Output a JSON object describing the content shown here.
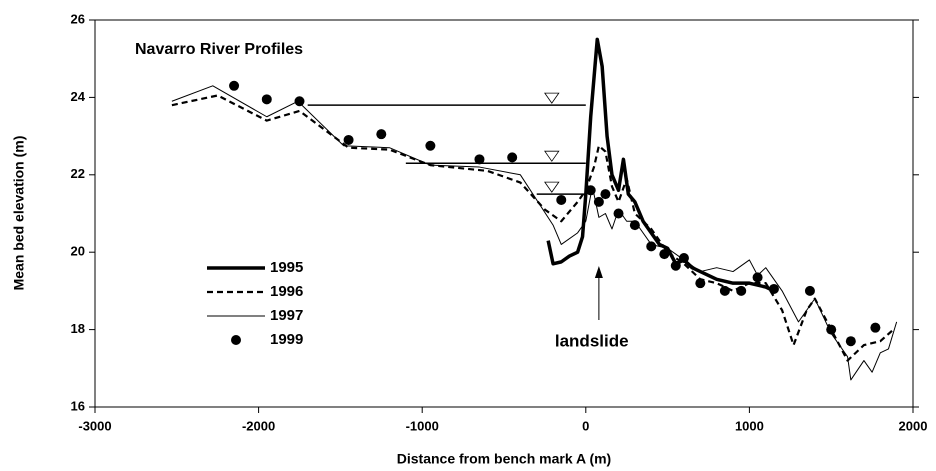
{
  "chart_data": {
    "type": "line",
    "title": "Navarro River Profiles",
    "x_label": "Distance from bench mark A (m)",
    "y_label": "Mean bed elevation (m)",
    "annotation": "landslide",
    "annotation_x": 80,
    "xlim": [
      -3000,
      2000
    ],
    "xticks": [
      -3000,
      -2000,
      -1000,
      0,
      1000,
      2000
    ],
    "ylim": [
      16,
      26
    ],
    "yticks": [
      16,
      18,
      20,
      22,
      24,
      26
    ],
    "grid": false,
    "legend": "lower left",
    "water_levels": [
      {
        "x": [
          -1700,
          0
        ],
        "y": 23.8
      },
      {
        "x": [
          -1100,
          0
        ],
        "y": 22.3
      },
      {
        "x": [
          -300,
          0
        ],
        "y": 21.5
      }
    ],
    "series": [
      {
        "name": "1995",
        "color": "#000",
        "style": "thick",
        "x": [
          -230,
          -200,
          -150,
          -100,
          -50,
          -20,
          0,
          30,
          70,
          100,
          130,
          160,
          200,
          230,
          260,
          300,
          350,
          400,
          450,
          500,
          550,
          600,
          650,
          700,
          800,
          900,
          1000,
          1100,
          1150
        ],
        "values": [
          20.3,
          19.7,
          19.75,
          19.9,
          20.0,
          20.4,
          21.5,
          23.5,
          25.5,
          24.8,
          23.0,
          22.0,
          21.6,
          22.4,
          21.5,
          21.3,
          20.8,
          20.5,
          20.2,
          20.1,
          19.7,
          19.8,
          19.6,
          19.5,
          19.3,
          19.2,
          19.2,
          19.1,
          19.0
        ]
      },
      {
        "name": "1996",
        "color": "#000",
        "style": "dashed",
        "x": [
          -2530,
          -2250,
          -1950,
          -1750,
          -1450,
          -1200,
          -950,
          -600,
          -400,
          -250,
          -150,
          -50,
          0,
          50,
          80,
          120,
          160,
          200,
          250,
          300,
          400,
          500,
          600,
          700,
          800,
          900,
          1000,
          1100,
          1200,
          1270,
          1350,
          1400,
          1500,
          1600,
          1700,
          1800,
          1880
        ],
        "values": [
          23.8,
          24.05,
          23.4,
          23.65,
          22.7,
          22.65,
          22.25,
          22.1,
          21.8,
          21.1,
          20.8,
          21.3,
          21.6,
          22.2,
          22.75,
          22.6,
          21.7,
          21.3,
          21.9,
          21.0,
          20.6,
          20.0,
          19.7,
          19.3,
          19.2,
          19.0,
          19.2,
          19.2,
          18.5,
          17.6,
          18.5,
          18.8,
          18.0,
          17.2,
          17.6,
          17.7,
          18.0
        ]
      },
      {
        "name": "1997",
        "color": "#000",
        "style": "thin",
        "x": [
          -2530,
          -2280,
          -1950,
          -1760,
          -1480,
          -1200,
          -950,
          -650,
          -400,
          -200,
          -150,
          -50,
          0,
          40,
          80,
          120,
          160,
          200,
          250,
          300,
          400,
          500,
          600,
          700,
          800,
          900,
          1000,
          1050,
          1100,
          1200,
          1250,
          1300,
          1400,
          1500,
          1600,
          1620,
          1700,
          1750,
          1800,
          1850,
          1900
        ],
        "values": [
          23.9,
          24.3,
          23.5,
          23.9,
          22.75,
          22.7,
          22.25,
          22.2,
          22.0,
          20.7,
          20.2,
          20.5,
          20.8,
          21.7,
          20.9,
          21.0,
          20.6,
          21.1,
          20.8,
          20.8,
          20.2,
          20.1,
          19.8,
          19.5,
          19.6,
          19.5,
          19.8,
          19.4,
          19.6,
          19.0,
          18.6,
          18.2,
          18.8,
          17.9,
          17.3,
          16.7,
          17.2,
          16.9,
          17.4,
          17.5,
          18.2
        ]
      },
      {
        "name": "1999",
        "color": "#000",
        "style": "dots",
        "x": [
          -2150,
          -1950,
          -1750,
          -1450,
          -1250,
          -950,
          -650,
          -450,
          -150,
          30,
          80,
          120,
          200,
          300,
          400,
          480,
          550,
          600,
          700,
          850,
          950,
          1050,
          1150,
          1370,
          1500,
          1620,
          1770
        ],
        "values": [
          24.3,
          23.95,
          23.9,
          22.9,
          23.05,
          22.75,
          22.4,
          22.45,
          21.35,
          21.6,
          21.3,
          21.5,
          21.0,
          20.7,
          20.15,
          19.95,
          19.65,
          19.85,
          19.2,
          19.0,
          19.0,
          19.35,
          19.05,
          19.0,
          18.0,
          17.7,
          18.05
        ]
      }
    ]
  }
}
